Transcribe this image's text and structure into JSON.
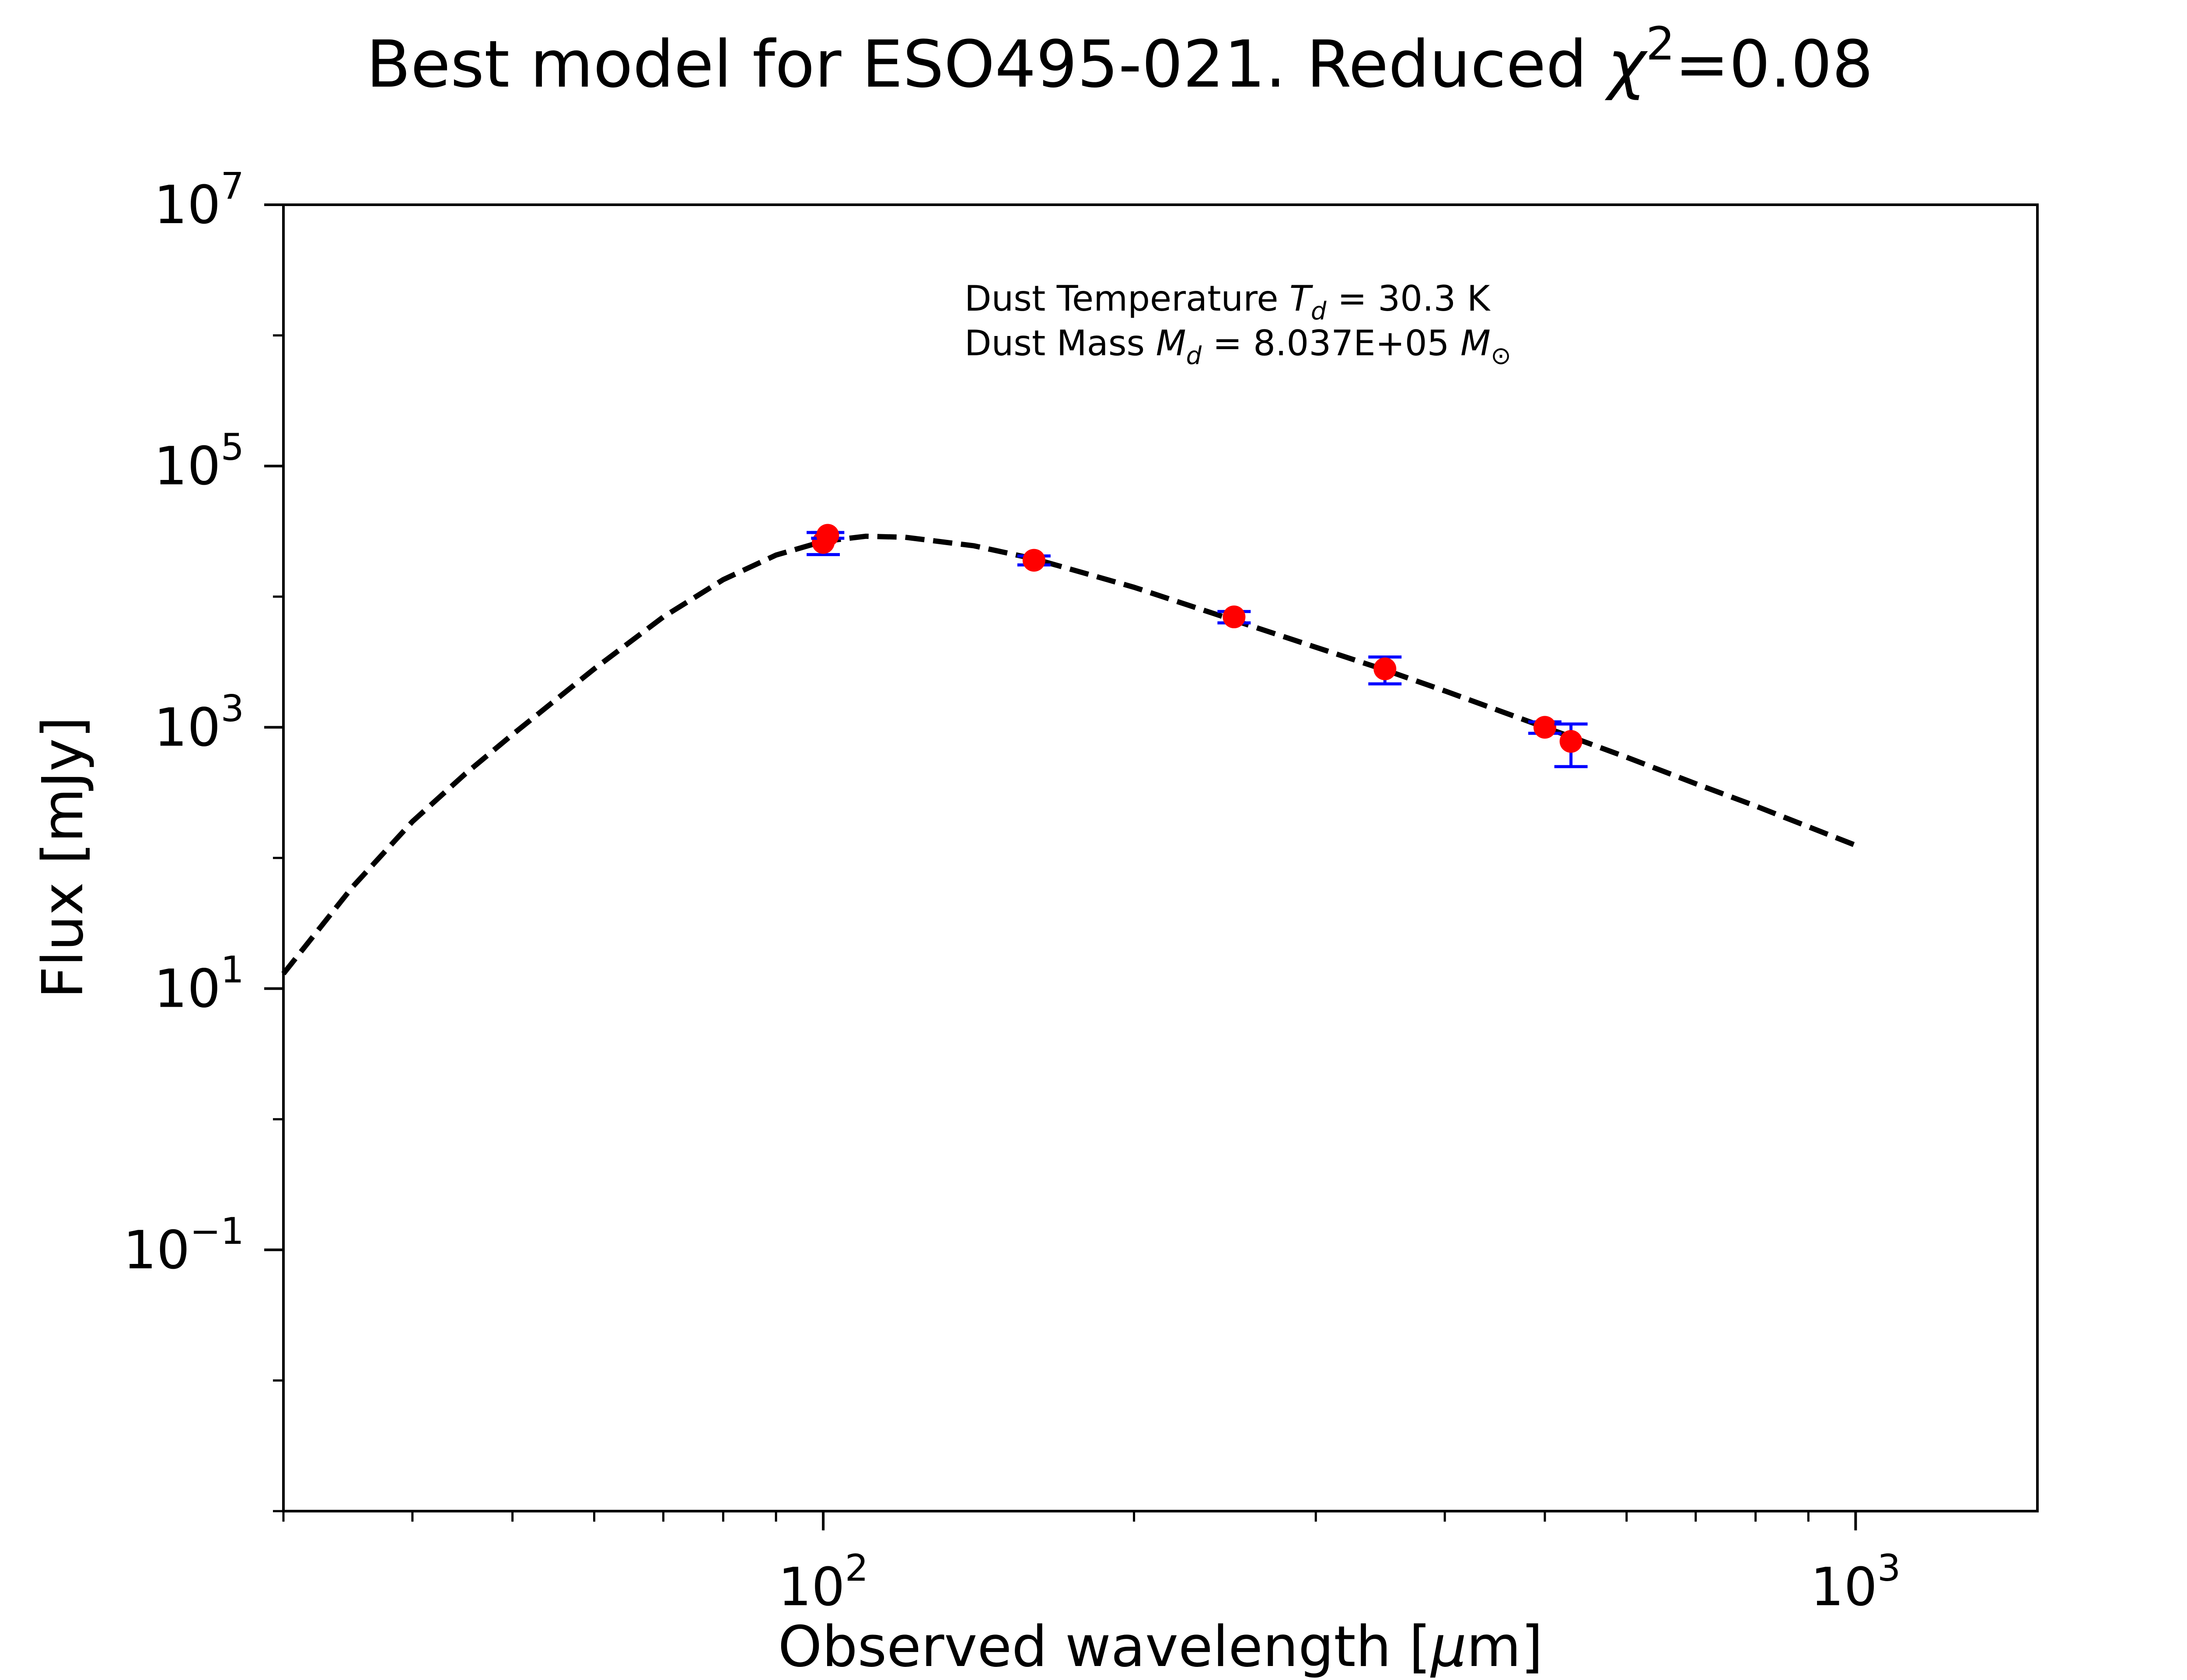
{
  "chart_data": {
    "type": "scatter",
    "title": {
      "prefix": "Best model for ESO495-021. Reduced ",
      "chi": "χ",
      "sup": "2",
      "suffix": "=0.08"
    },
    "xlabel": {
      "prefix": "Observed wavelength [",
      "mu": "μ",
      "suffix": "m]"
    },
    "ylabel": "Flux [mJy]",
    "x_scale": "log",
    "y_scale": "log",
    "xlim": [
      30,
      1500
    ],
    "ylim": [
      0.001,
      10000000
    ],
    "grid": false,
    "x_ticks": [
      {
        "value": 100,
        "base": "10",
        "exp": "2"
      },
      {
        "value": 1000,
        "base": "10",
        "exp": "3"
      }
    ],
    "y_ticks": [
      {
        "value": 0.1,
        "base": "10",
        "exp": "−1"
      },
      {
        "value": 10,
        "base": "10",
        "exp": "1"
      },
      {
        "value": 1000,
        "base": "10",
        "exp": "3"
      },
      {
        "value": 100000,
        "base": "10",
        "exp": "5"
      },
      {
        "value": 10000000,
        "base": "10",
        "exp": "7"
      }
    ],
    "annotation": {
      "temp_prefix": "Dust Temperature ",
      "temp_sym": "T",
      "temp_sub": "d",
      "temp_value": " = 30.3 K",
      "mass_prefix": "Dust Mass ",
      "mass_sym": "M",
      "mass_sub": "d",
      "mass_value": " = 8.037E+05 ",
      "mass_unit": "M",
      "mass_unit_sub": "⊙"
    },
    "series": [
      {
        "kind": "model",
        "style": "dashed",
        "color": "#000000",
        "x": [
          30,
          35,
          40,
          45,
          50,
          60,
          70,
          80,
          90,
          100,
          110,
          120,
          140,
          160,
          200,
          250,
          300,
          350,
          400,
          500,
          600,
          700,
          800,
          1000
        ],
        "y": [
          13,
          60,
          190,
          440,
          880,
          2800,
          7000,
          13500,
          20800,
          26500,
          29000,
          28500,
          24500,
          19500,
          11800,
          6600,
          4100,
          2750,
          1900,
          1000,
          590,
          370,
          250,
          125
        ]
      },
      {
        "kind": "observed",
        "marker_color": "#ff0000",
        "errorbar_color": "#0000ff",
        "points": [
          {
            "x": 100,
            "y": 26000,
            "err_low": 5000,
            "err_high": 5000
          },
          {
            "x": 101,
            "y": 29500,
            "err_low": 1500,
            "err_high": 1500
          },
          {
            "x": 160,
            "y": 19000,
            "err_low": 1500,
            "err_high": 1500
          },
          {
            "x": 250,
            "y": 7000,
            "err_low": 700,
            "err_high": 700
          },
          {
            "x": 350,
            "y": 2800,
            "err_low": 650,
            "err_high": 650
          },
          {
            "x": 500,
            "y": 1000,
            "err_low": 100,
            "err_high": 100
          },
          {
            "x": 530,
            "y": 780,
            "err_low": 280,
            "err_high": 280
          }
        ]
      }
    ]
  }
}
